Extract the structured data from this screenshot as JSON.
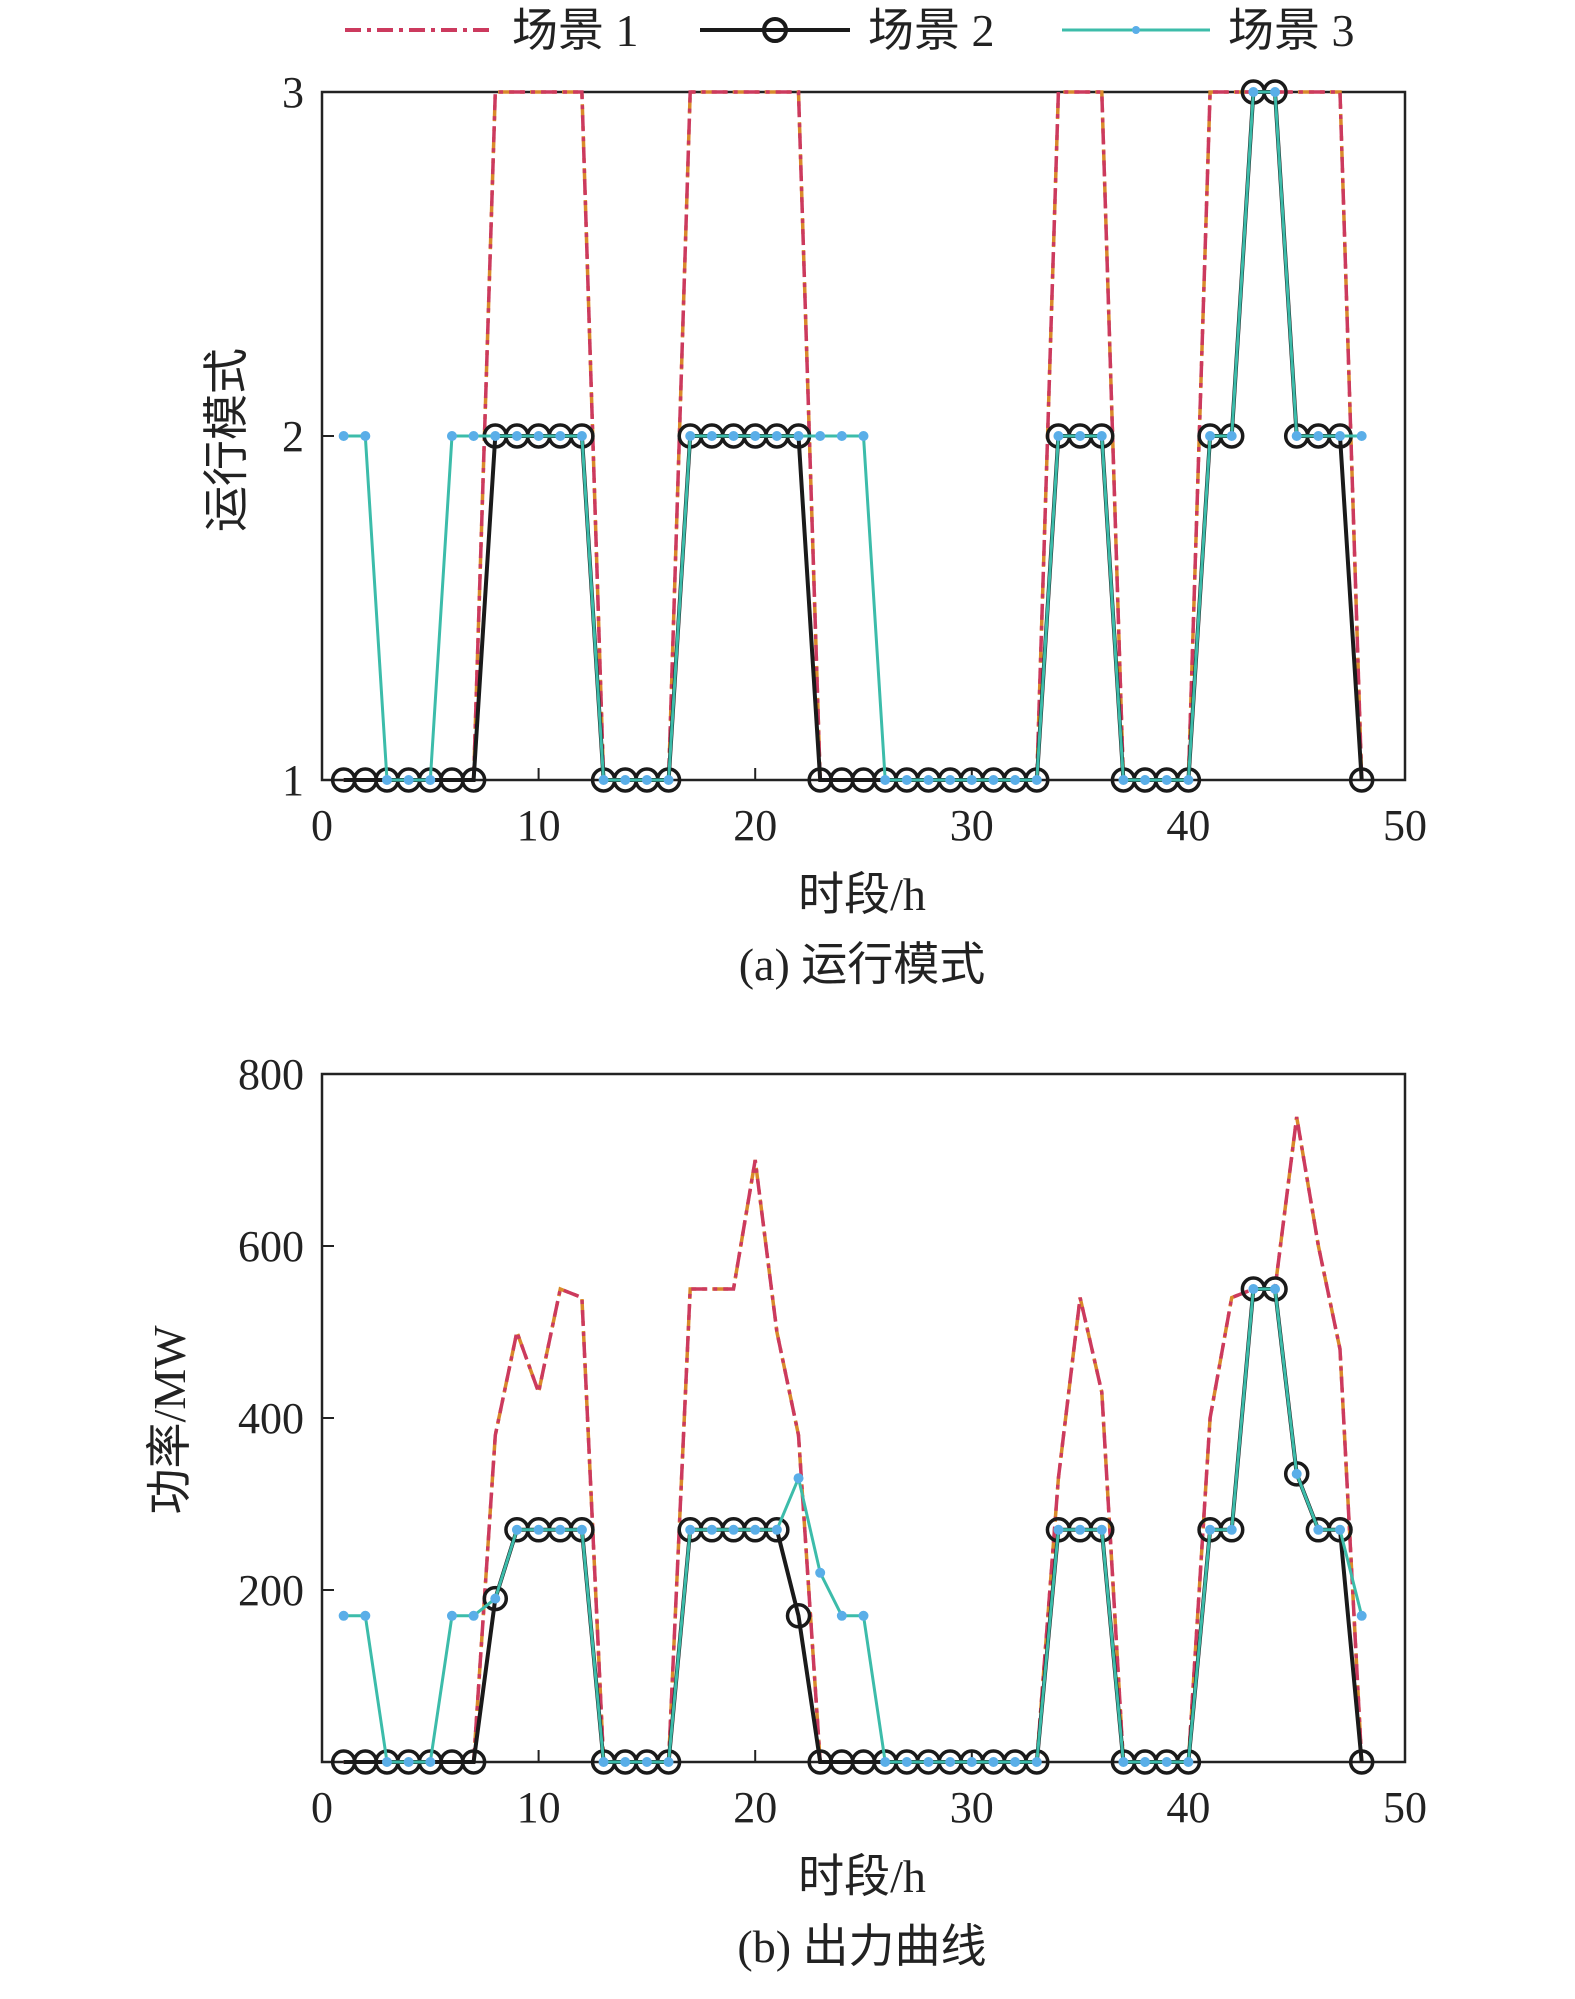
{
  "legend": {
    "s1": "场景 1",
    "s2": "场景 2",
    "s3": "场景 3"
  },
  "colors": {
    "s1": "#cc3a5e",
    "s1_alt": "#d98a2a",
    "s2": "#1a1a1a",
    "s3": "#3cbcaa",
    "s3_marker": "#5aaee8"
  },
  "chart_data": [
    {
      "type": "line",
      "caption": "(a) 运行模式",
      "xlabel": "时段/h",
      "ylabel": "运行模式",
      "xlim": [
        0,
        50
      ],
      "ylim": [
        1,
        3
      ],
      "xticks": [
        0,
        10,
        20,
        30,
        40,
        50
      ],
      "yticks": [
        1,
        2,
        3
      ],
      "legend_position": "top",
      "x": [
        1,
        2,
        3,
        4,
        5,
        6,
        7,
        8,
        9,
        10,
        11,
        12,
        13,
        14,
        15,
        16,
        17,
        18,
        19,
        20,
        21,
        22,
        23,
        24,
        25,
        26,
        27,
        28,
        29,
        30,
        31,
        32,
        33,
        34,
        35,
        36,
        37,
        38,
        39,
        40,
        41,
        42,
        43,
        44,
        45,
        46,
        47,
        48
      ],
      "series": [
        {
          "name": "场景 1",
          "key": "s1",
          "style": "dashdot",
          "marker": "none",
          "values": [
            1,
            1,
            1,
            1,
            1,
            1,
            1,
            3,
            3,
            3,
            3,
            3,
            1,
            1,
            1,
            1,
            3,
            3,
            3,
            3,
            3,
            3,
            1,
            1,
            1,
            1,
            1,
            1,
            1,
            1,
            1,
            1,
            1,
            3,
            3,
            3,
            1,
            1,
            1,
            1,
            3,
            3,
            3,
            3,
            3,
            3,
            3,
            1
          ]
        },
        {
          "name": "场景 2",
          "key": "s2",
          "style": "solid",
          "marker": "circle",
          "values": [
            1,
            1,
            1,
            1,
            1,
            1,
            1,
            2,
            2,
            2,
            2,
            2,
            1,
            1,
            1,
            1,
            2,
            2,
            2,
            2,
            2,
            2,
            1,
            1,
            1,
            1,
            1,
            1,
            1,
            1,
            1,
            1,
            1,
            2,
            2,
            2,
            1,
            1,
            1,
            1,
            2,
            2,
            3,
            3,
            2,
            2,
            2,
            1
          ]
        },
        {
          "name": "场景 3",
          "key": "s3",
          "style": "solid",
          "marker": "dot",
          "values": [
            2,
            2,
            1,
            1,
            1,
            2,
            2,
            2,
            2,
            2,
            2,
            2,
            1,
            1,
            1,
            1,
            2,
            2,
            2,
            2,
            2,
            2,
            2,
            2,
            2,
            1,
            1,
            1,
            1,
            1,
            1,
            1,
            1,
            2,
            2,
            2,
            1,
            1,
            1,
            1,
            2,
            2,
            3,
            3,
            2,
            2,
            2,
            2
          ]
        }
      ]
    },
    {
      "type": "line",
      "caption": "(b) 出力曲线",
      "xlabel": "时段/h",
      "ylabel": "功率/MW",
      "xlim": [
        0,
        50
      ],
      "ylim": [
        0,
        800
      ],
      "xticks": [
        0,
        10,
        20,
        30,
        40,
        50
      ],
      "yticks": [
        200,
        400,
        600,
        800
      ],
      "x": [
        1,
        2,
        3,
        4,
        5,
        6,
        7,
        8,
        9,
        10,
        11,
        12,
        13,
        14,
        15,
        16,
        17,
        18,
        19,
        20,
        21,
        22,
        23,
        24,
        25,
        26,
        27,
        28,
        29,
        30,
        31,
        32,
        33,
        34,
        35,
        36,
        37,
        38,
        39,
        40,
        41,
        42,
        43,
        44,
        45,
        46,
        47,
        48
      ],
      "series": [
        {
          "name": "场景 1",
          "key": "s1",
          "style": "dashdot",
          "marker": "none",
          "values": [
            0,
            0,
            0,
            0,
            0,
            0,
            0,
            380,
            500,
            430,
            550,
            540,
            0,
            0,
            0,
            0,
            550,
            550,
            550,
            700,
            500,
            380,
            0,
            0,
            0,
            0,
            0,
            0,
            0,
            0,
            0,
            0,
            0,
            330,
            540,
            430,
            0,
            0,
            0,
            0,
            400,
            540,
            550,
            550,
            750,
            600,
            480,
            0
          ]
        },
        {
          "name": "场景 2",
          "key": "s2",
          "style": "solid",
          "marker": "circle",
          "values": [
            0,
            0,
            0,
            0,
            0,
            0,
            0,
            190,
            270,
            270,
            270,
            270,
            0,
            0,
            0,
            0,
            270,
            270,
            270,
            270,
            270,
            170,
            0,
            0,
            0,
            0,
            0,
            0,
            0,
            0,
            0,
            0,
            0,
            270,
            270,
            270,
            0,
            0,
            0,
            0,
            270,
            270,
            550,
            550,
            335,
            270,
            270,
            0
          ]
        },
        {
          "name": "场景 3",
          "key": "s3",
          "style": "solid",
          "marker": "dot",
          "values": [
            170,
            170,
            0,
            0,
            0,
            170,
            170,
            190,
            270,
            270,
            270,
            270,
            0,
            0,
            0,
            0,
            270,
            270,
            270,
            270,
            270,
            330,
            220,
            170,
            170,
            0,
            0,
            0,
            0,
            0,
            0,
            0,
            0,
            270,
            270,
            270,
            0,
            0,
            0,
            0,
            270,
            270,
            550,
            550,
            335,
            270,
            270,
            170
          ]
        }
      ]
    }
  ]
}
